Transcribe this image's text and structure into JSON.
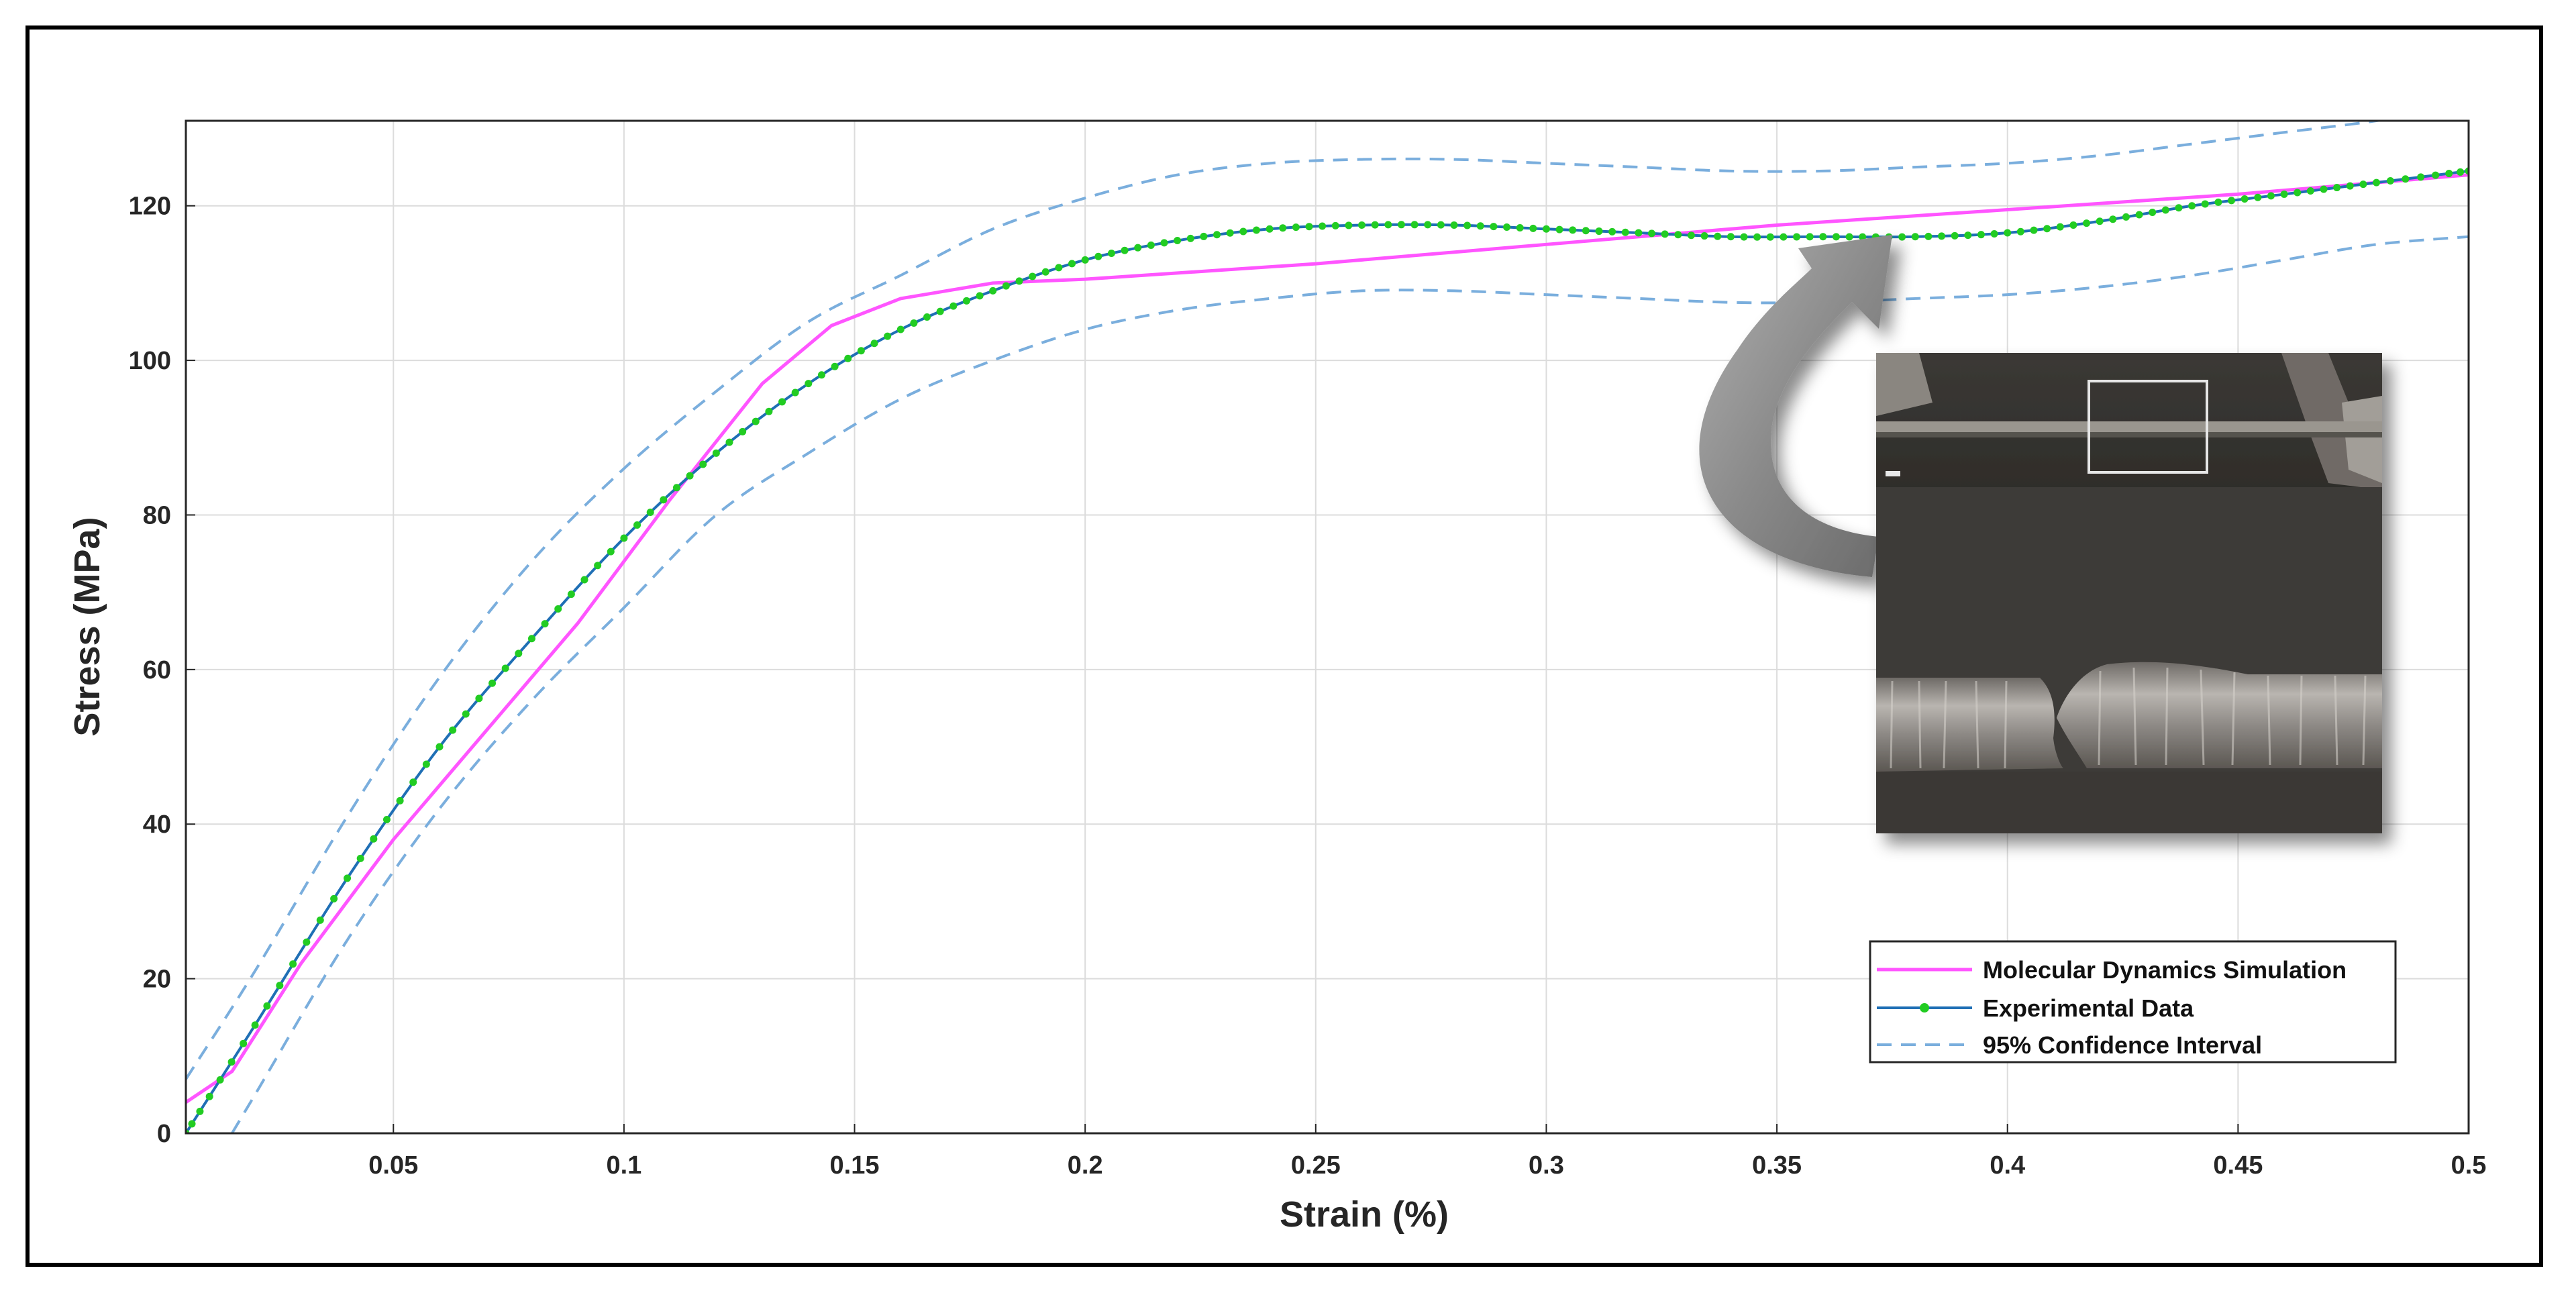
{
  "chart_data": {
    "type": "line",
    "title": "",
    "xlabel": "Strain (%)",
    "ylabel": "Stress (MPa)",
    "xlim": [
      0.005,
      0.5
    ],
    "ylim": [
      0,
      131
    ],
    "grid": true,
    "legend_position": "bottom-right",
    "x_ticks": [
      "0.05",
      "0.1",
      "0.15",
      "0.2",
      "0.25",
      "0.3",
      "0.35",
      "0.4",
      "0.45",
      "0.5"
    ],
    "y_ticks": [
      "0",
      "20",
      "40",
      "60",
      "80",
      "100",
      "120"
    ],
    "series": [
      {
        "name": "Molecular Dynamics Simulation",
        "color": "#ff55ff",
        "style": "solid",
        "x": [
          0.005,
          0.015,
          0.03,
          0.05,
          0.07,
          0.09,
          0.11,
          0.13,
          0.145,
          0.16,
          0.18,
          0.2,
          0.25,
          0.3,
          0.35,
          0.4,
          0.45,
          0.5
        ],
        "y": [
          4,
          8,
          22,
          38,
          52,
          66,
          82,
          97,
          104.5,
          108,
          110,
          110.5,
          112.5,
          115,
          117.5,
          119.5,
          121.5,
          124
        ]
      },
      {
        "name": "Experimental Data",
        "color": "#22cc22",
        "line_color": "#1f6fb5",
        "style": "solid-markers",
        "x": [
          0.005,
          0.02,
          0.04,
          0.06,
          0.08,
          0.1,
          0.12,
          0.14,
          0.16,
          0.18,
          0.2,
          0.22,
          0.24,
          0.26,
          0.28,
          0.3,
          0.32,
          0.34,
          0.36,
          0.38,
          0.4,
          0.42,
          0.44,
          0.46,
          0.48,
          0.5
        ],
        "y": [
          0,
          14,
          33,
          50,
          64,
          77,
          88,
          97,
          104,
          109,
          113,
          115.5,
          117,
          117.5,
          117.5,
          117,
          116.5,
          116,
          116,
          116,
          116.5,
          118,
          120,
          121.5,
          123,
          124.5
        ]
      },
      {
        "name": "95% Confidence Interval",
        "color": "#7aaedd",
        "style": "dashed",
        "x": [
          0.005,
          0.02,
          0.04,
          0.06,
          0.08,
          0.1,
          0.12,
          0.14,
          0.16,
          0.18,
          0.2,
          0.22,
          0.24,
          0.26,
          0.28,
          0.3,
          0.32,
          0.34,
          0.36,
          0.38,
          0.4,
          0.42,
          0.44,
          0.46,
          0.48,
          0.5
        ],
        "y": [
          7,
          21,
          41,
          59,
          74,
          86,
          96,
          105,
          111,
          117,
          121,
          124,
          125.5,
          126,
          126,
          125.5,
          125,
          124.5,
          124.5,
          125,
          125.5,
          126.5,
          128,
          129.5,
          131,
          133
        ]
      },
      {
        "name": "",
        "color": "#7aaedd",
        "style": "dashed",
        "x": [
          0.015,
          0.02,
          0.04,
          0.06,
          0.08,
          0.1,
          0.12,
          0.14,
          0.16,
          0.18,
          0.2,
          0.22,
          0.24,
          0.26,
          0.28,
          0.3,
          0.32,
          0.34,
          0.36,
          0.38,
          0.4,
          0.42,
          0.44,
          0.46,
          0.48,
          0.5
        ],
        "y": [
          0,
          5,
          25,
          42,
          56,
          68,
          80,
          88,
          95,
          100,
          104,
          106.5,
          108,
          109,
          109,
          108.5,
          108,
          107.5,
          107.5,
          108,
          108.5,
          109.5,
          111,
          113,
          115,
          116
        ]
      }
    ],
    "legend": [
      {
        "label": "Molecular Dynamics Simulation",
        "color": "#ff55ff",
        "style": "solid"
      },
      {
        "label": "Experimental Data",
        "color": "#1f6fb5",
        "style": "marker"
      },
      {
        "label": "95% Confidence Interval",
        "color": "#7aaedd",
        "style": "dashed"
      }
    ]
  }
}
